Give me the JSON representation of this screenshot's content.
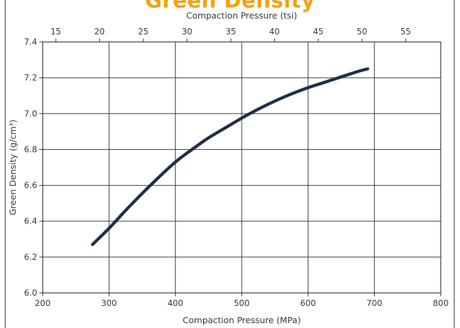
{
  "title": "Green Density",
  "chart_data": {
    "type": "line",
    "title": "Green Density",
    "xlabel": "Compaction Pressure (MPa)",
    "x2label": "Compaction Pressure (tsi)",
    "ylabel": "Green Density (g/cm³)",
    "xlim": [
      200,
      800
    ],
    "x2lim": [
      13.5,
      59
    ],
    "ylim": [
      6.0,
      7.4
    ],
    "xticks": [
      200,
      300,
      400,
      500,
      600,
      700,
      800
    ],
    "x2ticks": [
      15,
      20,
      25,
      30,
      35,
      40,
      45,
      50,
      55
    ],
    "yticks": [
      6.0,
      6.2,
      6.4,
      6.6,
      6.8,
      7.0,
      7.2,
      7.4
    ],
    "grid": true,
    "series_color": "#1f2d44",
    "series": [
      {
        "x": [
          275,
          300,
          325,
          350,
          375,
          400,
          425,
          450,
          475,
          500,
          525,
          550,
          575,
          600,
          625,
          650,
          675,
          690
        ],
        "y": [
          6.27,
          6.36,
          6.46,
          6.555,
          6.645,
          6.73,
          6.8,
          6.865,
          6.92,
          6.975,
          7.025,
          7.07,
          7.11,
          7.145,
          7.175,
          7.205,
          7.235,
          7.25
        ]
      }
    ]
  }
}
